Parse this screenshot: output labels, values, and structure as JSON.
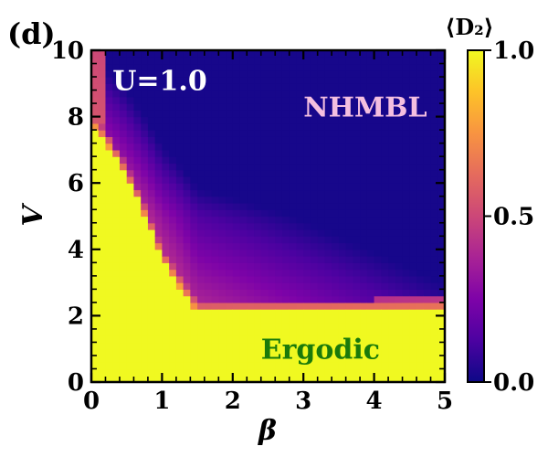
{
  "chart_data": {
    "type": "heatmap",
    "panel_label": "(d)",
    "xlabel": "β",
    "ylabel": "V",
    "xlim": [
      0,
      5
    ],
    "ylim": [
      0,
      10
    ],
    "x_ticks": [
      "0",
      "1",
      "2",
      "3",
      "4",
      "5"
    ],
    "y_ticks": [
      "0",
      "2",
      "4",
      "6",
      "8",
      "10"
    ],
    "grid": false,
    "grid_resolution": {
      "nx": 50,
      "ny": 50
    },
    "colorbar": {
      "title": "⟨D₂⟩",
      "range": [
        0,
        1
      ],
      "ticks": [
        "0.0",
        "0.5",
        "1.0"
      ],
      "colormap": "plasma"
    },
    "annotations": [
      {
        "text": "U=1.0",
        "x": 0.3,
        "y": 8.8,
        "color": "#ffffff"
      },
      {
        "text": "NHMBL",
        "x": 3.0,
        "y": 8.0,
        "color": "#f4bfe0"
      },
      {
        "text": "Ergodic",
        "x": 2.4,
        "y": 0.7,
        "color": "#1a7a0a"
      }
    ],
    "regions": [
      {
        "name": "Ergodic",
        "value": 1.0
      },
      {
        "name": "NHMBL",
        "value": 0.0
      }
    ],
    "boundary": {
      "description": "ergodic region below critical V(β)",
      "critical_V_at_beta_0": 7.8,
      "critical_V_at_beta_1": 3.7,
      "critical_V_at_beta_1_5": 2.1,
      "critical_V_plateau": 2.1
    }
  },
  "colors": {
    "plasma_stops": [
      "#0d0887",
      "#4c02a1",
      "#7e03a8",
      "#a92395",
      "#cc4778",
      "#e56b5d",
      "#f89441",
      "#fdc328",
      "#f0f921"
    ],
    "ergodic_yellow": "#f0f921"
  }
}
